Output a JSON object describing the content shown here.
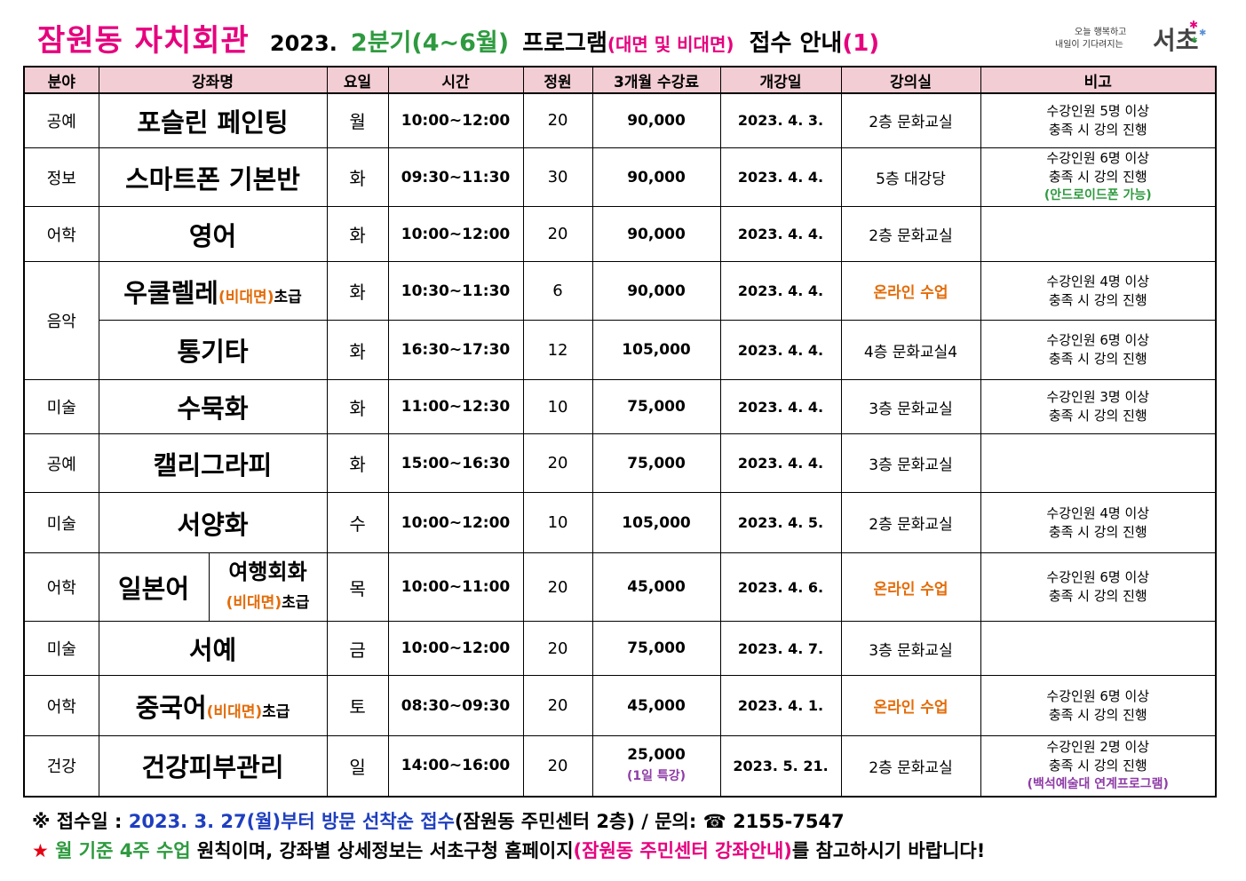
{
  "header": {
    "title_name": "잠원동 자치회관",
    "title_year": "2023.",
    "title_quarter": "2분기(4~6월)",
    "title_program": "프로그램",
    "title_mode": "(대면 및 비대면)",
    "title_notice": "접수 안내",
    "title_number": "(1)"
  },
  "logo": {
    "line1": "오늘 행복하고",
    "line2": "내일이 기다려지는",
    "main": "서초"
  },
  "table": {
    "headers": [
      "분야",
      "강좌명",
      "요일",
      "시간",
      "정원",
      "3개월 수강료",
      "개강일",
      "강의실",
      "비고"
    ],
    "rows": [
      {
        "field": "공예",
        "course": "포슬린 페인팅",
        "day": "월",
        "time": "10:00~12:00",
        "capacity": "20",
        "fee": "90,000",
        "start": "2023. 4. 3.",
        "room": "2층 문화교실",
        "note1": "수강인원 5명 이상",
        "note2": "충족 시 강의 진행"
      },
      {
        "field": "정보",
        "course": "스마트폰 기본반",
        "day": "화",
        "time": "09:30~11:30",
        "capacity": "30",
        "fee": "90,000",
        "start": "2023. 4. 4.",
        "room": "5층 대강당",
        "note1": "수강인원 6명 이상",
        "note2": "충족 시 강의 진행",
        "note3": "(안드로이드폰 가능)"
      },
      {
        "field": "어학",
        "course": "영어",
        "day": "화",
        "time": "10:00~12:00",
        "capacity": "20",
        "fee": "90,000",
        "start": "2023. 4. 4.",
        "room": "2층 문화교실"
      },
      {
        "field": "음악",
        "course": "우쿨렐레",
        "course_mode": "(비대면)",
        "course_level": "초급",
        "day": "화",
        "time": "10:30~11:30",
        "capacity": "6",
        "fee": "90,000",
        "start": "2023. 4. 4.",
        "room": "온라인 수업",
        "note1": "수강인원 4명 이상",
        "note2": "충족 시 강의 진행"
      },
      {
        "course": "통기타",
        "day": "화",
        "time": "16:30~17:30",
        "capacity": "12",
        "fee": "105,000",
        "start": "2023. 4. 4.",
        "room": "4층 문화교실4",
        "note1": "수강인원 6명 이상",
        "note2": "충족 시 강의 진행"
      },
      {
        "field": "미술",
        "course": "수묵화",
        "day": "화",
        "time": "11:00~12:30",
        "capacity": "10",
        "fee": "75,000",
        "start": "2023. 4. 4.",
        "room": "3층 문화교실",
        "note1": "수강인원 3명 이상",
        "note2": "충족 시 강의 진행"
      },
      {
        "field": "공예",
        "course": "캘리그라피",
        "day": "화",
        "time": "15:00~16:30",
        "capacity": "20",
        "fee": "75,000",
        "start": "2023. 4. 4.",
        "room": "3층 문화교실"
      },
      {
        "field": "미술",
        "course": "서양화",
        "day": "수",
        "time": "10:00~12:00",
        "capacity": "10",
        "fee": "105,000",
        "start": "2023. 4. 5.",
        "room": "2층 문화교실",
        "note1": "수강인원 4명 이상",
        "note2": "충족 시 강의 진행"
      },
      {
        "field": "어학",
        "course": "일본어",
        "sub_course": "여행회화",
        "course_mode": "(비대면)",
        "course_level": "초급",
        "day": "목",
        "time": "10:00~11:00",
        "capacity": "20",
        "fee": "45,000",
        "start": "2023. 4. 6.",
        "room": "온라인 수업",
        "note1": "수강인원 6명 이상",
        "note2": "충족 시 강의 진행"
      },
      {
        "field": "미술",
        "course": "서예",
        "day": "금",
        "time": "10:00~12:00",
        "capacity": "20",
        "fee": "75,000",
        "start": "2023. 4. 7.",
        "room": "3층 문화교실"
      },
      {
        "field": "어학",
        "course": "중국어",
        "course_mode": "(비대면)",
        "course_level": "초급",
        "day": "토",
        "time": "08:30~09:30",
        "capacity": "20",
        "fee": "45,000",
        "start": "2023. 4. 1.",
        "room": "온라인 수업",
        "note1": "수강인원 6명 이상",
        "note2": "충족 시 강의 진행"
      },
      {
        "field": "건강",
        "course": "건강피부관리",
        "day": "일",
        "time": "14:00~16:00",
        "capacity": "20",
        "fee": "25,000",
        "fee_note": "(1일 특강)",
        "start": "2023. 5. 21.",
        "room": "2층 문화교실",
        "note1": "수강인원 2명 이상",
        "note2": "충족 시 강의 진행",
        "note3": "(백석예술대 연계프로그램)"
      }
    ]
  },
  "footer": {
    "mark": "※",
    "label": "접수일",
    "colon": ":",
    "date_text": "2023. 3. 27(월)부터 방문 선착순 접수",
    "place": "(잠원동 주민센터 2층)",
    "slash": "/",
    "contact_label": "문의:",
    "phone_icon": "☎",
    "phone": "2155-7547",
    "star": "★",
    "rule_green": "월 기준 4주 수업",
    "rule_text": "원칙이며, 강좌별 상세정보는 서초구청 홈페이지",
    "rule_magenta": "(잠원동 주민센터 강좌안내)",
    "rule_end": "를 참고하시기 바랍니다!"
  },
  "colors": {
    "title_magenta": "#e6007e",
    "quarter_green": "#2e9a3f",
    "header_pink": "#f2cdd3",
    "online_orange": "#e36c09",
    "footer_blue": "#1f3fbf",
    "note_purple": "#8e3ca6"
  }
}
